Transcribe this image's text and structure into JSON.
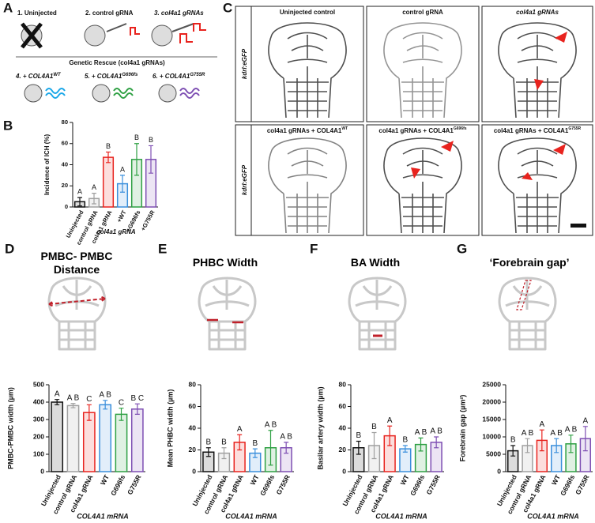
{
  "panel_labels": [
    "A",
    "B",
    "C",
    "D",
    "E",
    "F",
    "G"
  ],
  "panel_a": {
    "conditions": [
      "1. Uninjected",
      "2. control gRNA",
      "3. col4a1 gRNAs"
    ],
    "rescue_title": "Genetic Rescue (col4a1 gRNAs)",
    "rescues": [
      {
        "text": "4. + COL4A1",
        "sup": "WT"
      },
      {
        "text": "5. + COL4A1",
        "sup": "G696fs"
      },
      {
        "text": "6. + COL4A1",
        "sup": "G755R"
      }
    ]
  },
  "panel_c": {
    "reporter_label": "kdrl:eGFP",
    "images": [
      {
        "label": "Uninjected control"
      },
      {
        "label": "control gRNA"
      },
      {
        "label": "col4a1 gRNAs"
      },
      {
        "label": "col4a1 gRNAs + COL4A1",
        "sup": "WT"
      },
      {
        "label": "col4a1 gRNAs + COL4A1",
        "sup": "G696fs"
      },
      {
        "label": "col4a1 gRNAs + COL4A1",
        "sup": "G755R"
      }
    ]
  },
  "chart_data": [
    {
      "type": "bar",
      "ylabel": "Incidence of ICH (%)",
      "xlabel": "col4a1 gRNA",
      "categories": [
        "Uninjected",
        "control gRNA",
        "col4a1 gRNA",
        "+WT",
        "+G696fs",
        "+G755R"
      ],
      "values": [
        5,
        8,
        47,
        22,
        45,
        45
      ],
      "errors": [
        4,
        5,
        5,
        8,
        15,
        13
      ],
      "letters": [
        "A",
        "A",
        "B",
        "A",
        "B",
        "B"
      ],
      "colors": [
        "#111111",
        "#a0a0a0",
        "#e8231e",
        "#3a8fdc",
        "#2ea043",
        "#7e4fb3"
      ],
      "ylim": [
        0,
        80
      ],
      "yticks": [
        0,
        20,
        40,
        60,
        80
      ]
    },
    {
      "type": "bar",
      "title": "PMBC- PMBC Distance",
      "ylabel": "PMBC-PMBC width (µm)",
      "xlabel": "COL4A1 mRNA",
      "categories": [
        "Uninjected",
        "control gRNA",
        "col4a1 gRNA",
        "WT",
        "G696fs",
        "G755R"
      ],
      "values": [
        400,
        380,
        340,
        385,
        330,
        360
      ],
      "errors": [
        15,
        12,
        45,
        25,
        35,
        30
      ],
      "letters": [
        "A",
        "A B",
        "C",
        "A B",
        "C",
        "B C"
      ],
      "colors": [
        "#111111",
        "#a0a0a0",
        "#e8231e",
        "#3a8fdc",
        "#2ea043",
        "#7e4fb3"
      ],
      "ylim": [
        0,
        500
      ],
      "yticks": [
        0,
        100,
        200,
        300,
        400,
        500
      ]
    },
    {
      "type": "bar",
      "title": "PHBC Width",
      "ylabel": "Mean PHBC width (µm)",
      "xlabel": "COL4A1 mRNA",
      "categories": [
        "Uninjected",
        "control gRNA",
        "col4a1 gRNA",
        "WT",
        "G696fs",
        "G755R"
      ],
      "values": [
        18,
        17,
        27,
        17,
        22,
        22
      ],
      "errors": [
        4,
        5,
        7,
        4,
        16,
        5
      ],
      "letters": [
        "B",
        "B",
        "A",
        "B",
        "A B",
        "A B"
      ],
      "colors": [
        "#111111",
        "#a0a0a0",
        "#e8231e",
        "#3a8fdc",
        "#2ea043",
        "#7e4fb3"
      ],
      "ylim": [
        0,
        80
      ],
      "yticks": [
        0,
        20,
        40,
        60,
        80
      ]
    },
    {
      "type": "bar",
      "title": "BA Width",
      "ylabel": "Basilar artery width (µm)",
      "xlabel": "COL4A1  mRNA",
      "categories": [
        "Uninjected",
        "control gRNA",
        "col4a1 gRNA",
        "WT",
        "G696fs",
        "G755R"
      ],
      "values": [
        22,
        24,
        33,
        21,
        25,
        27
      ],
      "errors": [
        6,
        12,
        9,
        3,
        6,
        5
      ],
      "letters": [
        "B",
        "B",
        "A",
        "B",
        "A B",
        "A B"
      ],
      "colors": [
        "#111111",
        "#a0a0a0",
        "#e8231e",
        "#3a8fdc",
        "#2ea043",
        "#7e4fb3"
      ],
      "ylim": [
        0,
        80
      ],
      "yticks": [
        0,
        20,
        40,
        60,
        80
      ]
    },
    {
      "type": "bar",
      "title": "‘Forebrain gap’",
      "ylabel": "Forebrain gap (µm²)",
      "xlabel": "COL4A1  mRNA",
      "categories": [
        "Uninjected",
        "control gRNA",
        "col4a1 gRNA",
        "WT",
        "G696fs",
        "G755R"
      ],
      "values": [
        6000,
        7500,
        9000,
        7500,
        8000,
        9500
      ],
      "errors": [
        1500,
        2000,
        3000,
        2000,
        2500,
        3500
      ],
      "letters": [
        "B",
        "A B",
        "A",
        "A B",
        "A B",
        "A"
      ],
      "colors": [
        "#111111",
        "#a0a0a0",
        "#e8231e",
        "#3a8fdc",
        "#2ea043",
        "#7e4fb3"
      ],
      "ylim": [
        0,
        25000
      ],
      "yticks": [
        0,
        5000,
        10000,
        15000,
        20000,
        25000
      ]
    }
  ]
}
